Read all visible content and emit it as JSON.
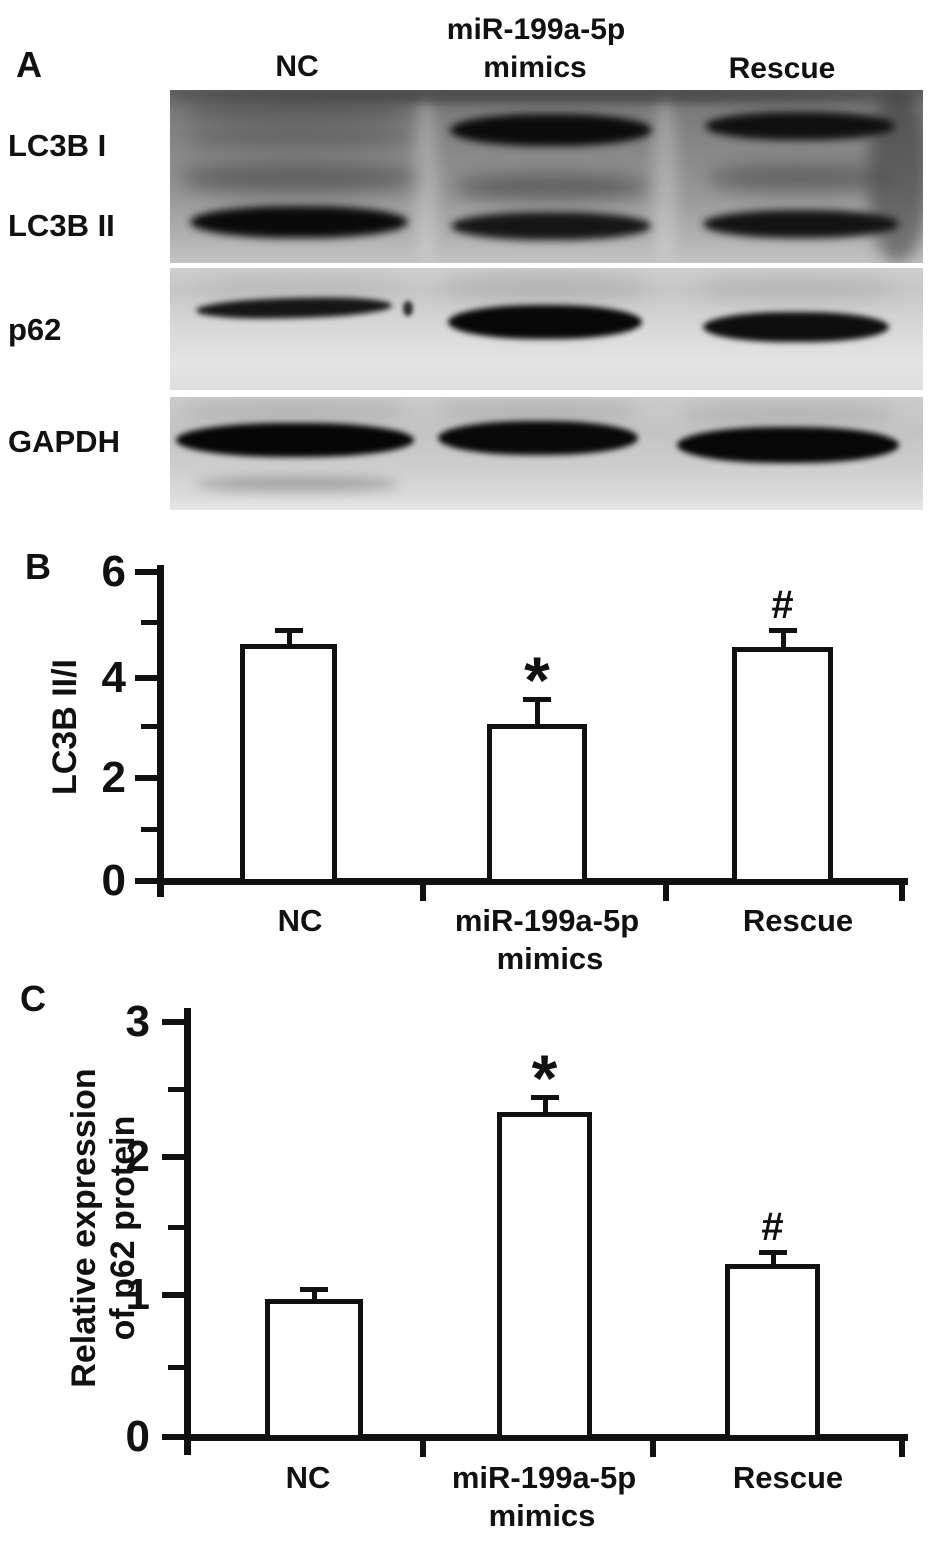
{
  "colors": {
    "ink": "#111111",
    "bar_fill": "#ffffff",
    "background": "#ffffff"
  },
  "panel_a": {
    "label": "A",
    "col_headers": {
      "nc": "NC",
      "mimics_line1": "miR-199a-5p",
      "mimics_line2": "mimics",
      "rescue": "Rescue"
    },
    "row_labels": [
      "LC3B I",
      "LC3B II",
      "p62",
      "GAPDH"
    ],
    "lanes": [
      "NC",
      "miR-199a-5p mimics",
      "Rescue"
    ],
    "bands": {
      "LC3B I": [
        "faint",
        "strong",
        "strong"
      ],
      "LC3B II": [
        "strong",
        "medium",
        "medium"
      ],
      "p62": [
        "thin",
        "strong",
        "medium"
      ],
      "GAPDH": [
        "strong",
        "strong",
        "strong"
      ]
    }
  },
  "chart_data": [
    {
      "type": "bar",
      "panel": "B",
      "title": "",
      "ylabel": "LC3B II/I",
      "ylabel_lines": [
        "LC3B II/I"
      ],
      "xlabel": "",
      "categories": [
        "NC",
        "miR-199a-5p mimics",
        "Rescue"
      ],
      "xlabel_lines": [
        [
          "NC"
        ],
        [
          "miR-199a-5p",
          "mimics"
        ],
        [
          "Rescue"
        ]
      ],
      "values": [
        4.6,
        3.05,
        4.55
      ],
      "errors": [
        0.27,
        0.49,
        0.33
      ],
      "sig": [
        "",
        "*",
        "#"
      ],
      "ylim": [
        0,
        6
      ],
      "ytick_values": [
        6,
        4,
        2,
        0
      ],
      "ytick_labels": [
        "6",
        "4",
        "2",
        "0"
      ],
      "bar_fill": "#ffffff",
      "grid": false,
      "legend": "none"
    },
    {
      "type": "bar",
      "panel": "C",
      "title": "",
      "ylabel": "Relative expression of p62 protein",
      "ylabel_lines": [
        "Relative expression",
        "of p62 protein"
      ],
      "xlabel": "",
      "categories": [
        "NC",
        "miR-199a-5p mimics",
        "Rescue"
      ],
      "xlabel_lines": [
        [
          "NC"
        ],
        [
          "miR-199a-5p",
          "mimics"
        ],
        [
          "Rescue"
        ]
      ],
      "values": [
        1.0,
        2.35,
        1.25
      ],
      "errors": [
        0.07,
        0.11,
        0.09
      ],
      "sig": [
        "",
        "*",
        "#"
      ],
      "ylim": [
        0,
        3
      ],
      "ytick_values": [
        3,
        2,
        1,
        0
      ],
      "ytick_labels": [
        "3",
        "2",
        "1",
        "0"
      ],
      "bar_fill": "#ffffff",
      "grid": false,
      "legend": "none"
    }
  ]
}
